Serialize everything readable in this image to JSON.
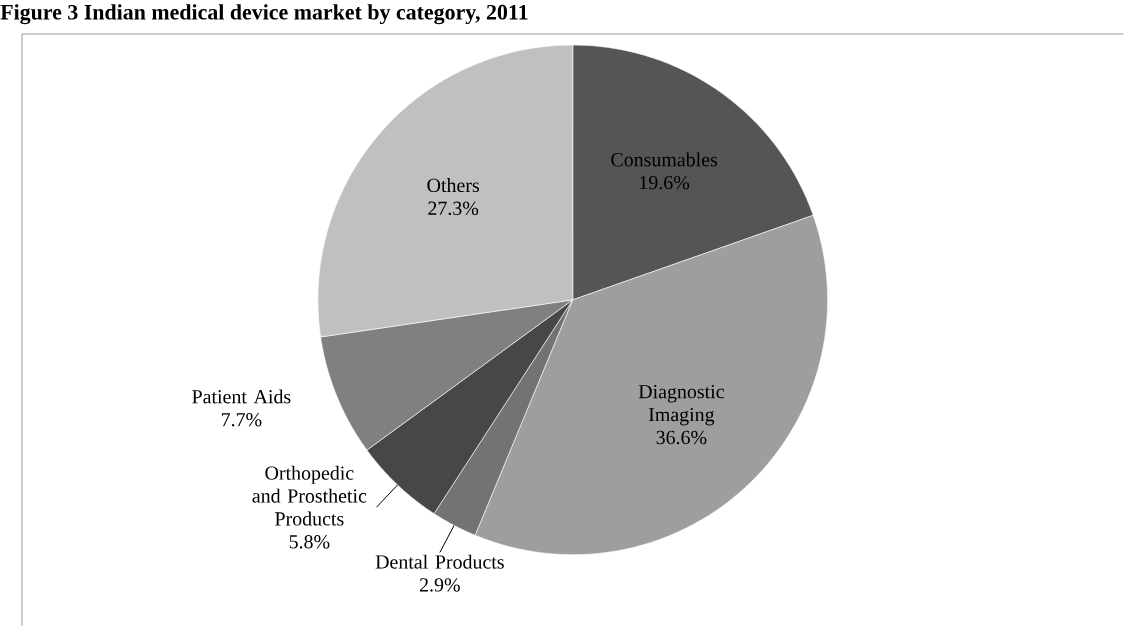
{
  "chart_data": {
    "type": "pie",
    "title": "Figure 3 Indian medical device market by category, 2011",
    "categories": [
      "Consumables",
      "Diagnostic Imaging",
      "Dental Products",
      "Orthopedic and Prosthetic Products",
      "Patient Aids",
      "Others"
    ],
    "values": [
      19.6,
      36.6,
      2.9,
      5.8,
      7.7,
      27.3
    ],
    "value_labels": [
      "19.6%",
      "36.6%",
      "2.9%",
      "5.8%",
      "7.7%",
      "27.3%"
    ],
    "colors": [
      "#555555",
      "#9e9e9e",
      "#737373",
      "#474747",
      "#808080",
      "#c0c0c0"
    ]
  }
}
